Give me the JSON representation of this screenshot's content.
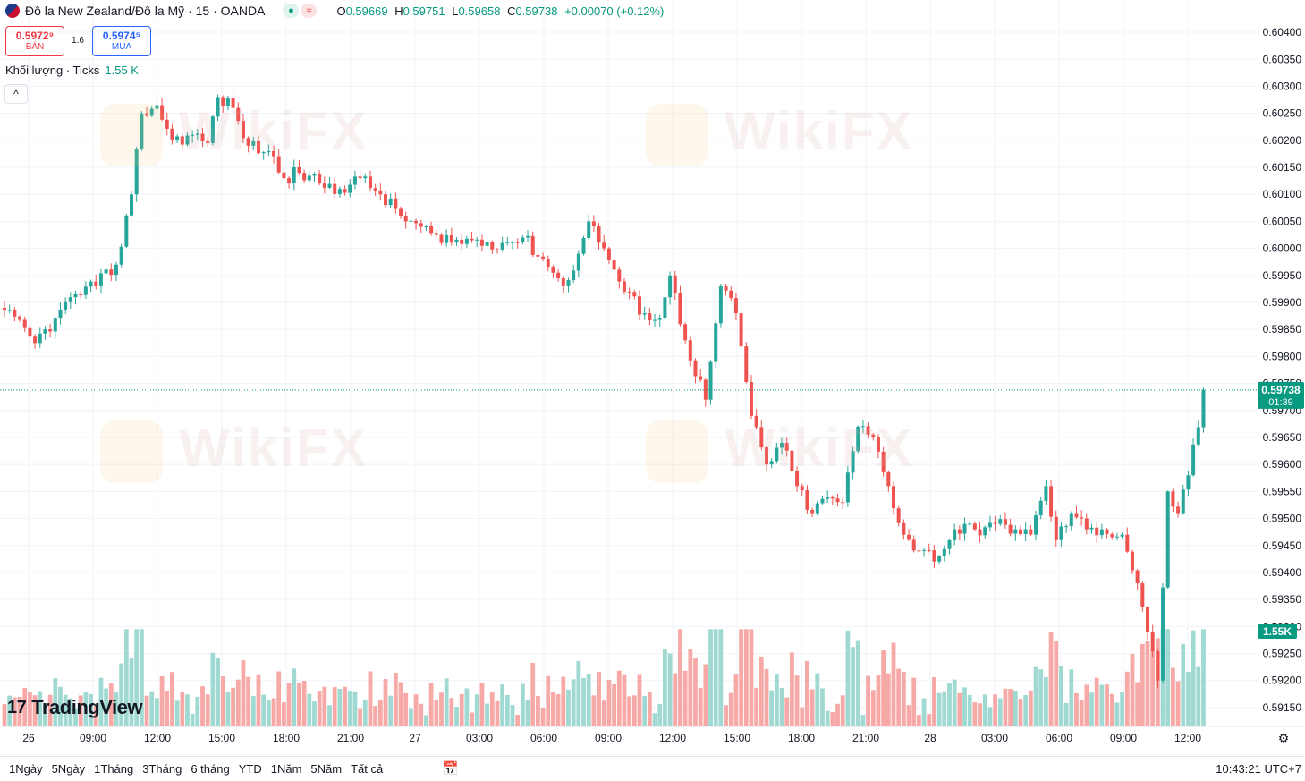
{
  "header": {
    "symbol": "Đô la New Zealand/Đô la Mỹ · 15 · OANDA",
    "ohlc": [
      {
        "k": "O",
        "v": "0.59669"
      },
      {
        "k": "H",
        "v": "0.59751"
      },
      {
        "k": "L",
        "v": "0.59658"
      },
      {
        "k": "C",
        "v": "0.59738"
      },
      {
        "k": "",
        "v": "+0.00070 (+0.12%)"
      }
    ],
    "sell_price": "0.5972⁹",
    "sell_label": "BÁN",
    "spread": "1.6",
    "buy_price": "0.5974⁵",
    "buy_label": "MUA",
    "volume_label": "Khối lượng · Ticks",
    "volume_value": "1.55 K",
    "collapse_glyph": "^"
  },
  "branding": {
    "logo_text": "TradingView",
    "watermark": "WikiFX"
  },
  "bottom_bar": {
    "timeframes": [
      "1Ngày",
      "5Ngày",
      "1Tháng",
      "3Tháng",
      "6 tháng",
      "YTD",
      "1Năm",
      "5Năm",
      "Tất cả"
    ],
    "clock": "10:43:21 UTC+7"
  },
  "colors": {
    "up": "#26a69a",
    "down": "#ef5350",
    "up_vol": "#9fd9d1",
    "down_vol": "#f7a9a7",
    "last_price": "#089981"
  },
  "chart_data": {
    "type": "candlestick",
    "interval_minutes": 15,
    "y_ticks": [
      "0.60400",
      "0.60350",
      "0.60300",
      "0.60250",
      "0.60200",
      "0.60150",
      "0.60100",
      "0.60050",
      "0.60000",
      "0.59950",
      "0.59900",
      "0.59850",
      "0.59800",
      "0.59750",
      "0.59700",
      "0.59650",
      "0.59600",
      "0.59550",
      "0.59500",
      "0.59450",
      "0.59400",
      "0.59350",
      "0.59300",
      "0.59250",
      "0.59200",
      "0.59150"
    ],
    "x_ticks": [
      "26",
      "09:00",
      "12:00",
      "15:00",
      "18:00",
      "21:00",
      "27",
      "03:00",
      "06:00",
      "09:00",
      "12:00",
      "15:00",
      "18:00",
      "21:00",
      "28",
      "03:00",
      "06:00",
      "09:00",
      "12:00"
    ],
    "ylim": [
      0.59135,
      0.60415
    ],
    "last_price": "0.59738",
    "countdown": "01:39",
    "last_volume": "1.55K",
    "anchors": [
      [
        0,
        0.59885
      ],
      [
        6,
        0.59825
      ],
      [
        10,
        0.5987
      ],
      [
        14,
        0.59915
      ],
      [
        18,
        0.5993
      ],
      [
        22,
        0.5997
      ],
      [
        25,
        0.601
      ],
      [
        27,
        0.6025
      ],
      [
        30,
        0.60265
      ],
      [
        33,
        0.602
      ],
      [
        37,
        0.6021
      ],
      [
        40,
        0.60195
      ],
      [
        42,
        0.6028
      ],
      [
        45,
        0.6026
      ],
      [
        48,
        0.6019
      ],
      [
        52,
        0.6018
      ],
      [
        55,
        0.6013
      ],
      [
        58,
        0.6014
      ],
      [
        62,
        0.6012
      ],
      [
        66,
        0.6011
      ],
      [
        70,
        0.6013
      ],
      [
        74,
        0.601
      ],
      [
        78,
        0.6006
      ],
      [
        82,
        0.6004
      ],
      [
        86,
        0.6001
      ],
      [
        92,
        0.60015
      ],
      [
        98,
        0.6001
      ],
      [
        102,
        0.6002
      ],
      [
        106,
        0.5998
      ],
      [
        110,
        0.5993
      ],
      [
        113,
        0.5999
      ],
      [
        115,
        0.6005
      ],
      [
        118,
        0.6
      ],
      [
        122,
        0.5992
      ],
      [
        126,
        0.5988
      ],
      [
        129,
        0.5987
      ],
      [
        131,
        0.5995
      ],
      [
        134,
        0.5983
      ],
      [
        138,
        0.5972
      ],
      [
        141,
        0.5993
      ],
      [
        144,
        0.5988
      ],
      [
        147,
        0.5969
      ],
      [
        150,
        0.596
      ],
      [
        153,
        0.5964
      ],
      [
        156,
        0.5956
      ],
      [
        159,
        0.5951
      ],
      [
        162,
        0.5954
      ],
      [
        165,
        0.5953
      ],
      [
        168,
        0.5967
      ],
      [
        171,
        0.5965
      ],
      [
        174,
        0.5956
      ],
      [
        177,
        0.5947
      ],
      [
        180,
        0.5944
      ],
      [
        184,
        0.5943
      ],
      [
        187,
        0.5948
      ],
      [
        191,
        0.5948
      ],
      [
        195,
        0.5949
      ],
      [
        199,
        0.5948
      ],
      [
        202,
        0.5947
      ],
      [
        205,
        0.5956
      ],
      [
        207,
        0.5946
      ],
      [
        210,
        0.5951
      ],
      [
        213,
        0.5948
      ],
      [
        216,
        0.5948
      ],
      [
        220,
        0.5947
      ],
      [
        223,
        0.5938
      ],
      [
        225,
        0.5929
      ],
      [
        227,
        0.592
      ],
      [
        229,
        0.5955
      ],
      [
        231,
        0.5951
      ],
      [
        233,
        0.5958
      ],
      [
        235,
        0.59669
      ],
      [
        236,
        0.59738
      ]
    ],
    "volume_ylim": [
      0,
      1700
    ]
  }
}
